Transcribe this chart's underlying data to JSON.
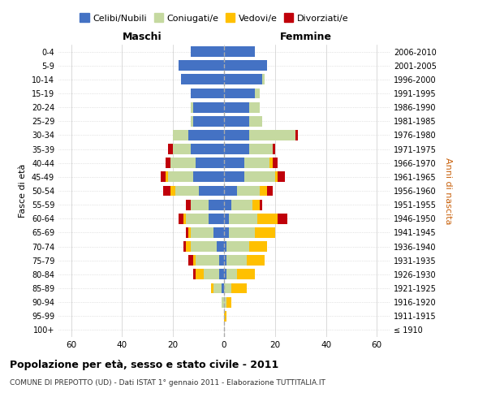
{
  "age_groups": [
    "100+",
    "95-99",
    "90-94",
    "85-89",
    "80-84",
    "75-79",
    "70-74",
    "65-69",
    "60-64",
    "55-59",
    "50-54",
    "45-49",
    "40-44",
    "35-39",
    "30-34",
    "25-29",
    "20-24",
    "15-19",
    "10-14",
    "5-9",
    "0-4"
  ],
  "birth_years": [
    "≤ 1910",
    "1911-1915",
    "1916-1920",
    "1921-1925",
    "1926-1930",
    "1931-1935",
    "1936-1940",
    "1941-1945",
    "1946-1950",
    "1951-1955",
    "1956-1960",
    "1961-1965",
    "1966-1970",
    "1971-1975",
    "1976-1980",
    "1981-1985",
    "1986-1990",
    "1991-1995",
    "1996-2000",
    "2001-2005",
    "2006-2010"
  ],
  "males": {
    "celibi": [
      0,
      0,
      0,
      1,
      2,
      2,
      3,
      4,
      6,
      6,
      10,
      12,
      11,
      13,
      14,
      12,
      12,
      13,
      17,
      18,
      13
    ],
    "coniugati": [
      0,
      0,
      1,
      3,
      6,
      9,
      10,
      9,
      9,
      7,
      9,
      10,
      10,
      7,
      6,
      1,
      1,
      0,
      0,
      0,
      0
    ],
    "vedovi": [
      0,
      0,
      0,
      1,
      3,
      1,
      2,
      1,
      1,
      0,
      2,
      1,
      0,
      0,
      0,
      0,
      0,
      0,
      0,
      0,
      0
    ],
    "divorziati": [
      0,
      0,
      0,
      0,
      1,
      2,
      1,
      1,
      2,
      2,
      3,
      2,
      2,
      2,
      0,
      0,
      0,
      0,
      0,
      0,
      0
    ]
  },
  "females": {
    "nubili": [
      0,
      0,
      0,
      0,
      1,
      1,
      1,
      2,
      2,
      3,
      5,
      8,
      8,
      10,
      10,
      10,
      10,
      12,
      15,
      17,
      12
    ],
    "coniugate": [
      0,
      0,
      1,
      3,
      4,
      8,
      9,
      10,
      11,
      8,
      9,
      12,
      10,
      9,
      18,
      5,
      4,
      2,
      1,
      0,
      0
    ],
    "vedove": [
      0,
      1,
      2,
      6,
      7,
      7,
      7,
      8,
      8,
      3,
      3,
      1,
      1,
      0,
      0,
      0,
      0,
      0,
      0,
      0,
      0
    ],
    "divorziate": [
      0,
      0,
      0,
      0,
      0,
      0,
      0,
      0,
      4,
      1,
      2,
      3,
      2,
      1,
      1,
      0,
      0,
      0,
      0,
      0,
      0
    ]
  },
  "colors": {
    "celibi": "#4472c4",
    "coniugati": "#c5d9a0",
    "vedovi": "#ffc000",
    "divorziati": "#c0000a"
  },
  "xlim": 65,
  "title": "Popolazione per età, sesso e stato civile - 2011",
  "subtitle": "COMUNE DI PREPOTTO (UD) - Dati ISTAT 1° gennaio 2011 - Elaborazione TUTTITALIA.IT",
  "ylabel_left": "Fasce di età",
  "ylabel_right": "Anni di nascita",
  "xlabel_left": "Maschi",
  "xlabel_right": "Femmine",
  "legend_labels": [
    "Celibi/Nubili",
    "Coniugati/e",
    "Vedovi/e",
    "Divorziati/e"
  ]
}
